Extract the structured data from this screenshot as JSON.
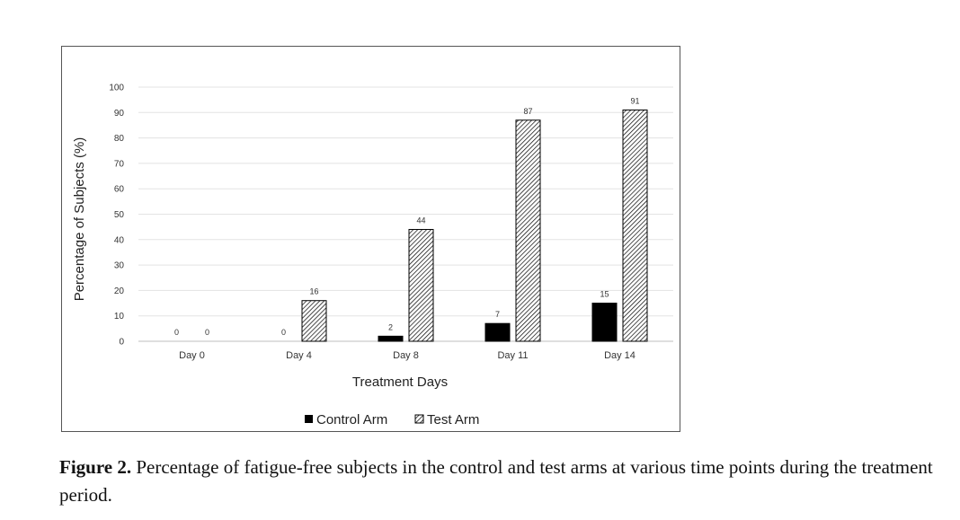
{
  "chart_data": {
    "type": "bar",
    "categories": [
      "Day 0",
      "Day 4",
      "Day 8",
      "Day 11",
      "Day 14"
    ],
    "series": [
      {
        "name": "Control Arm",
        "values": [
          0,
          0,
          2,
          7,
          15
        ],
        "fill": "solid",
        "color": "#000000"
      },
      {
        "name": "Test Arm",
        "values": [
          0,
          16,
          44,
          87,
          91
        ],
        "fill": "hatched",
        "color": "#000000"
      }
    ],
    "data_labels": [
      [
        "0",
        "0",
        "2",
        "7",
        "15"
      ],
      [
        "0",
        "16",
        "44",
        "87",
        "91"
      ]
    ],
    "xlabel": "Treatment Days",
    "ylabel": "Percentage of Subjects (%)",
    "ylim": [
      0,
      100
    ],
    "yticks": [
      0,
      10,
      20,
      30,
      40,
      50,
      60,
      70,
      80,
      90,
      100
    ],
    "grid": true,
    "legend": "bottom"
  },
  "caption": {
    "label": "Figure 2.",
    "text": " Percentage of fatigue-free subjects in the control and test arms at various time points during the treatment period."
  }
}
